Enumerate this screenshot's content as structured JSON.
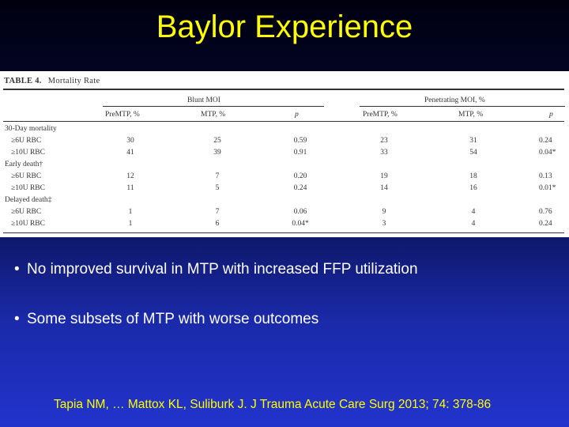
{
  "slide": {
    "title": "Baylor Experience"
  },
  "table": {
    "caption_label": "TABLE 4.",
    "caption_title": "Mortality Rate",
    "group_headers": [
      "Blunt MOI",
      "Penetrating MOI, %"
    ],
    "col_headers": [
      "PreMTP, %",
      "MTP, %",
      "p",
      "PreMTP, %",
      "MTP, %",
      "p"
    ],
    "rows": [
      {
        "label": "30-Day mortality",
        "type": "section"
      },
      {
        "label": "≥6U RBC",
        "type": "data",
        "values": [
          "30",
          "25",
          "0.59",
          "23",
          "31",
          "0.24"
        ]
      },
      {
        "label": "≥10U RBC",
        "type": "data",
        "values": [
          "41",
          "39",
          "0.91",
          "33",
          "54",
          "0.04*"
        ]
      },
      {
        "label": "Early death†",
        "type": "section"
      },
      {
        "label": "≥6U RBC",
        "type": "data",
        "values": [
          "12",
          "7",
          "0.20",
          "19",
          "18",
          "0.13"
        ]
      },
      {
        "label": "≥10U RBC",
        "type": "data",
        "values": [
          "11",
          "5",
          "0.24",
          "14",
          "16",
          "0.01*"
        ]
      },
      {
        "label": "Delayed death‡",
        "type": "section"
      },
      {
        "label": "≥6U RBC",
        "type": "data",
        "values": [
          "1",
          "7",
          "0.06",
          "9",
          "4",
          "0.76"
        ]
      },
      {
        "label": "≥10U RBC",
        "type": "data",
        "values": [
          "1",
          "6",
          "0.04*",
          "3",
          "4",
          "0.24"
        ]
      }
    ]
  },
  "bullets": [
    "No improved survival in MTP with increased FFP utilization",
    "Some subsets of MTP with worse outcomes"
  ],
  "bullet_glyph": "•",
  "citation": "Tapia NM, … Mattox KL, Suliburk J. J Trauma Acute Care Surg 2013; 74: 378-86"
}
